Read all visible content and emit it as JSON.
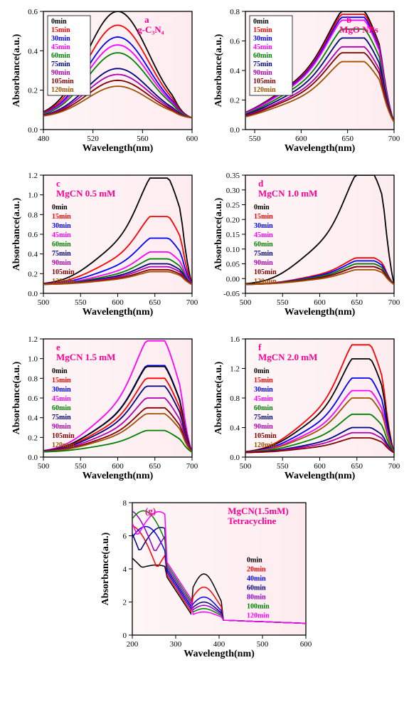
{
  "global": {
    "xlabel": "Wavelength(nm)",
    "ylabel": "Absorbance(a.u.)",
    "plot_bg_start": "#fff6f7",
    "plot_bg_end": "#fdecef",
    "border_color": "#000000",
    "tick_color": "#000000",
    "label_fontsize": 14,
    "tick_fontsize": 11,
    "title_fontsize": 13
  },
  "legends9": [
    {
      "label": "0min",
      "color": "#000000"
    },
    {
      "label": "15min",
      "color": "#ff0000"
    },
    {
      "label": "30min",
      "color": "#0000ff"
    },
    {
      "label": "45min",
      "color": "#ff00ff"
    },
    {
      "label": "60min",
      "color": "#008000"
    },
    {
      "label": "75min",
      "color": "#000080"
    },
    {
      "label": "90min",
      "color": "#b000b0"
    },
    {
      "label": "105min",
      "color": "#800000"
    },
    {
      "label": "120min",
      "color": "#a05000"
    }
  ],
  "legends7": [
    {
      "label": "0min",
      "color": "#000000"
    },
    {
      "label": "20min",
      "color": "#ff0000"
    },
    {
      "label": "40min",
      "color": "#0000ff"
    },
    {
      "label": "60min",
      "color": "#000080"
    },
    {
      "label": "80min",
      "color": "#9000d0"
    },
    {
      "label": "100min",
      "color": "#008000"
    },
    {
      "label": "120min",
      "color": "#ff00ff"
    }
  ],
  "panels": {
    "a": {
      "letter": "a",
      "title": "g-C₃N₄",
      "title_color": "#ff0090",
      "xlim": [
        480,
        600
      ],
      "xticks": [
        480,
        520,
        560,
        600
      ],
      "ylim": [
        0.0,
        0.6
      ],
      "yticks": [
        0.0,
        0.2,
        0.4,
        0.6
      ],
      "legend_pos": "top-left-box",
      "peak_x": 540,
      "shape": "single",
      "peaks": [
        0.6,
        0.53,
        0.47,
        0.43,
        0.39,
        0.31,
        0.28,
        0.25,
        0.22
      ],
      "baseline": 0.06
    },
    "b": {
      "letter": "b",
      "title": "MgO NPs",
      "title_color": "#ff0090",
      "xlim": [
        540,
        700
      ],
      "xticks": [
        550,
        600,
        650,
        700
      ],
      "ylim": [
        0.0,
        0.8
      ],
      "yticks": [
        0.0,
        0.2,
        0.4,
        0.6,
        0.8
      ],
      "legend_pos": "top-left-box",
      "peak_x": 660,
      "shape": "shoulder",
      "peaks": [
        0.8,
        0.78,
        0.76,
        0.74,
        0.68,
        0.62,
        0.56,
        0.52,
        0.46
      ],
      "baseline": 0.05
    },
    "c": {
      "letter": "c",
      "title": "MgCN 0.5 mM",
      "title_color": "#ff0090",
      "xlim": [
        500,
        700
      ],
      "xticks": [
        500,
        550,
        600,
        650,
        700
      ],
      "ylim": [
        0.0,
        1.2
      ],
      "yticks": [
        0.0,
        0.2,
        0.4,
        0.6,
        0.8,
        1.0,
        1.2
      ],
      "legend_pos": "mid-left",
      "peak_x": 660,
      "shape": "shoulder",
      "peaks": [
        1.17,
        0.78,
        0.56,
        0.42,
        0.35,
        0.3,
        0.27,
        0.24,
        0.22
      ],
      "baseline": 0.09
    },
    "d": {
      "letter": "d",
      "title": "MgCN 1.0 mM",
      "title_color": "#ff0090",
      "xlim": [
        500,
        700
      ],
      "xticks": [
        500,
        550,
        600,
        650,
        700
      ],
      "ylim": [
        -0.05,
        0.35
      ],
      "yticks": [
        -0.05,
        0.0,
        0.05,
        0.1,
        0.15,
        0.2,
        0.25,
        0.3,
        0.35
      ],
      "legend_pos": "mid-left",
      "peak_x": 665,
      "shape": "shoulder",
      "peaks": [
        0.35,
        0.07,
        0.06,
        0.05,
        0.05,
        0.04,
        0.04,
        0.04,
        0.03
      ],
      "baseline": -0.02
    },
    "e": {
      "letter": "e",
      "title": "MgCN 1.5 mM",
      "title_color": "#ff0090",
      "xlim": [
        500,
        700
      ],
      "xticks": [
        500,
        550,
        600,
        650,
        700
      ],
      "ylim": [
        0.0,
        1.2
      ],
      "yticks": [
        0.0,
        0.2,
        0.4,
        0.6,
        0.8,
        1.0,
        1.2
      ],
      "legend_pos": "mid-left",
      "peak_x": 655,
      "shape": "shoulder",
      "order": [
        "#ff00ff",
        "#0000ff",
        "#000000",
        "#ff0000",
        "#000080",
        "#b000b0",
        "#800000",
        "#a05000",
        "#008000"
      ],
      "peaks": [
        1.18,
        0.93,
        0.92,
        0.8,
        0.72,
        0.6,
        0.5,
        0.44,
        0.27
      ],
      "baseline": 0.05
    },
    "f": {
      "letter": "f",
      "title": "MgCN 2.0 mM",
      "title_color": "#ff0090",
      "xlim": [
        500,
        700
      ],
      "xticks": [
        500,
        550,
        600,
        650,
        700
      ],
      "ylim": [
        0.0,
        1.6
      ],
      "yticks": [
        0.0,
        0.4,
        0.8,
        1.2,
        1.6
      ],
      "legend_pos": "mid-left",
      "peak_x": 660,
      "shape": "shoulder",
      "order": [
        "#ff0000",
        "#000000",
        "#0000ff",
        "#ff00ff",
        "#a05000",
        "#008000",
        "#000080",
        "#b000b0",
        "#800000"
      ],
      "peaks": [
        1.52,
        1.33,
        1.07,
        0.9,
        0.8,
        0.58,
        0.4,
        0.33,
        0.26
      ],
      "baseline": 0.06
    },
    "g": {
      "letter": "(g)",
      "title": "MgCN(1.5mM)",
      "subtitle": "Tetracycline",
      "title_color": "#ff0090",
      "xlim": [
        200,
        600
      ],
      "xticks": [
        200,
        300,
        400,
        500,
        600
      ],
      "ylim": [
        0,
        8
      ],
      "yticks": [
        0,
        2,
        4,
        6,
        8
      ],
      "legend_pos": "right",
      "shape": "complex",
      "baseline": 0.7
    }
  }
}
